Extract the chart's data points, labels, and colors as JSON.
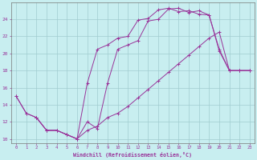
{
  "xlabel": "Windchill (Refroidissement éolien,°C)",
  "background_color": "#c8eef0",
  "grid_color": "#a0ccd0",
  "line_color": "#993399",
  "xlim": [
    -0.5,
    23.5
  ],
  "ylim": [
    9.5,
    26.0
  ],
  "yticks": [
    10,
    12,
    14,
    16,
    18,
    20,
    22,
    24
  ],
  "xticks": [
    0,
    1,
    2,
    3,
    4,
    5,
    6,
    7,
    8,
    9,
    10,
    11,
    12,
    13,
    14,
    15,
    16,
    17,
    18,
    19,
    20,
    21,
    22,
    23
  ],
  "line1_x": [
    0,
    1,
    2,
    3,
    4,
    5,
    6,
    7,
    8,
    9,
    10,
    11,
    12,
    13,
    14,
    15,
    16,
    17,
    18,
    19,
    20,
    21,
    22,
    23
  ],
  "line1_y": [
    15,
    13,
    12.5,
    11.0,
    11.0,
    10.5,
    10.0,
    12.0,
    11.2,
    16.5,
    20.5,
    21.0,
    21.5,
    23.8,
    24.0,
    25.2,
    25.3,
    24.8,
    25.0,
    24.5,
    20.5,
    18.0,
    18.0,
    18.0
  ],
  "line2_x": [
    2,
    3,
    4,
    5,
    6,
    7,
    8,
    9,
    10,
    11,
    12,
    13,
    14,
    15,
    16,
    17,
    18,
    19,
    20,
    21,
    22,
    23
  ],
  "line2_y": [
    12.5,
    11.0,
    11.0,
    10.5,
    10.0,
    11.0,
    11.5,
    12.5,
    13.0,
    13.8,
    14.8,
    15.8,
    16.8,
    17.8,
    18.8,
    19.8,
    20.8,
    21.8,
    22.5,
    18.0,
    18.0,
    18.0
  ],
  "line3_x": [
    0,
    1,
    2,
    3,
    4,
    5,
    6,
    7,
    8,
    9,
    10,
    11,
    12,
    13,
    14,
    15,
    16,
    17,
    18,
    19,
    20,
    21,
    22,
    23
  ],
  "line3_y": [
    15.0,
    13.0,
    12.5,
    11.0,
    11.0,
    10.5,
    10.0,
    16.5,
    20.5,
    21.0,
    21.8,
    22.0,
    23.9,
    24.1,
    25.1,
    25.3,
    24.9,
    25.0,
    24.6,
    24.5,
    20.3,
    18.0,
    18.0,
    18.0
  ]
}
